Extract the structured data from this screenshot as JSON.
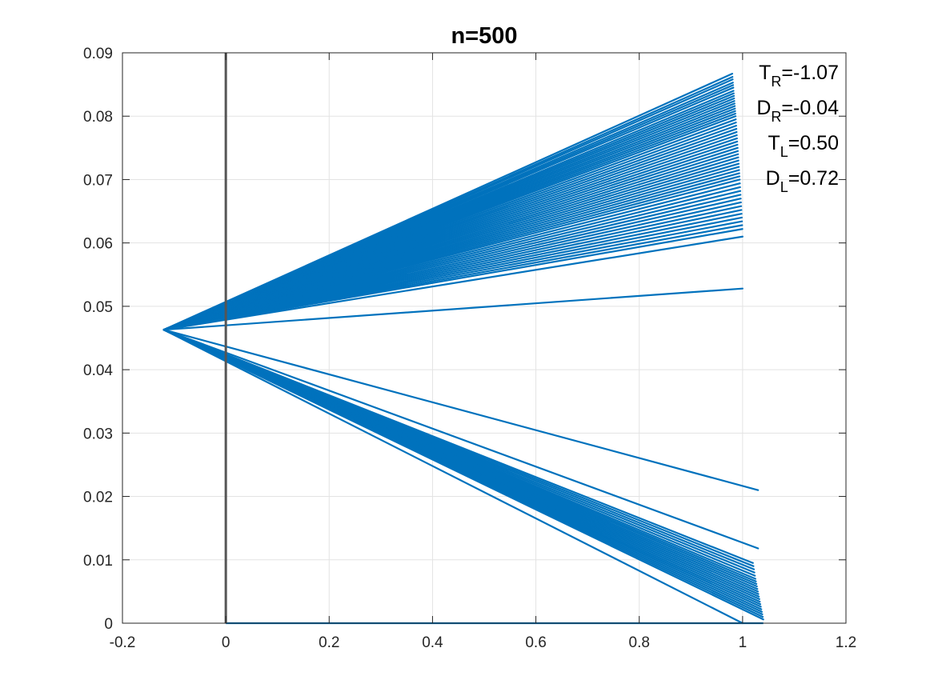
{
  "chart_data": {
    "type": "line",
    "title": "n=500",
    "xlim": [
      -0.2,
      1.2
    ],
    "ylim": [
      0,
      0.09
    ],
    "x_ticks": [
      "-0.2",
      "0",
      "0.2",
      "0.4",
      "0.6",
      "0.8",
      "1",
      "1.2"
    ],
    "y_ticks": [
      "0",
      "0.01",
      "0.02",
      "0.03",
      "0.04",
      "0.05",
      "0.06",
      "0.07",
      "0.08",
      "0.09"
    ],
    "grid": true,
    "vertical_line_x": 0,
    "series_color": "#0072BD",
    "vline_color": "#555555",
    "origin": {
      "x": -0.12,
      "y": 0.0463
    },
    "upper_fan": {
      "end_x_range": [
        0.98,
        1.0
      ],
      "end_y_values": [
        0.0867,
        0.0862,
        0.0858,
        0.0853,
        0.0849,
        0.0845,
        0.084,
        0.0836,
        0.0832,
        0.0828,
        0.0824,
        0.082,
        0.0816,
        0.0812,
        0.0808,
        0.0804,
        0.08,
        0.0795,
        0.079,
        0.0785,
        0.078,
        0.0775,
        0.077,
        0.0765,
        0.076,
        0.0755,
        0.075,
        0.0745,
        0.074,
        0.0735,
        0.073,
        0.0725,
        0.072,
        0.0715,
        0.071,
        0.0705,
        0.07,
        0.0694,
        0.0688,
        0.0682,
        0.0676,
        0.067,
        0.0664,
        0.0658,
        0.0652,
        0.0646,
        0.064,
        0.0634,
        0.0628,
        0.0622,
        0.061
      ]
    },
    "middle_line": {
      "end": {
        "x": 1.0,
        "y": 0.0528
      }
    },
    "lower_fan": {
      "end_x_range": [
        1.02,
        1.04
      ],
      "end_y_values": [
        0.0095,
        0.009,
        0.0085,
        0.008,
        0.0075,
        0.007,
        0.0066,
        0.0062,
        0.0058,
        0.0054,
        0.005,
        0.0046,
        0.0042,
        0.0038,
        0.0034,
        0.003,
        0.0026,
        0.0022,
        0.0018,
        0.0014,
        0.001,
        0.0006
      ]
    },
    "lower_outliers": [
      {
        "x": 1.03,
        "y": 0.021
      },
      {
        "x": 1.03,
        "y": 0.0118
      },
      {
        "x": 1.0,
        "y": 0.0
      }
    ],
    "baseline_segment": {
      "x": [
        0,
        1.04
      ],
      "y": 0
    }
  },
  "annotations": [
    {
      "main": "T",
      "sub": "R",
      "value": "=-1.07"
    },
    {
      "main": "D",
      "sub": "R",
      "value": "=-0.04"
    },
    {
      "main": "T",
      "sub": "L",
      "value": "=0.50"
    },
    {
      "main": "D",
      "sub": "L",
      "value": "=0.72"
    }
  ]
}
